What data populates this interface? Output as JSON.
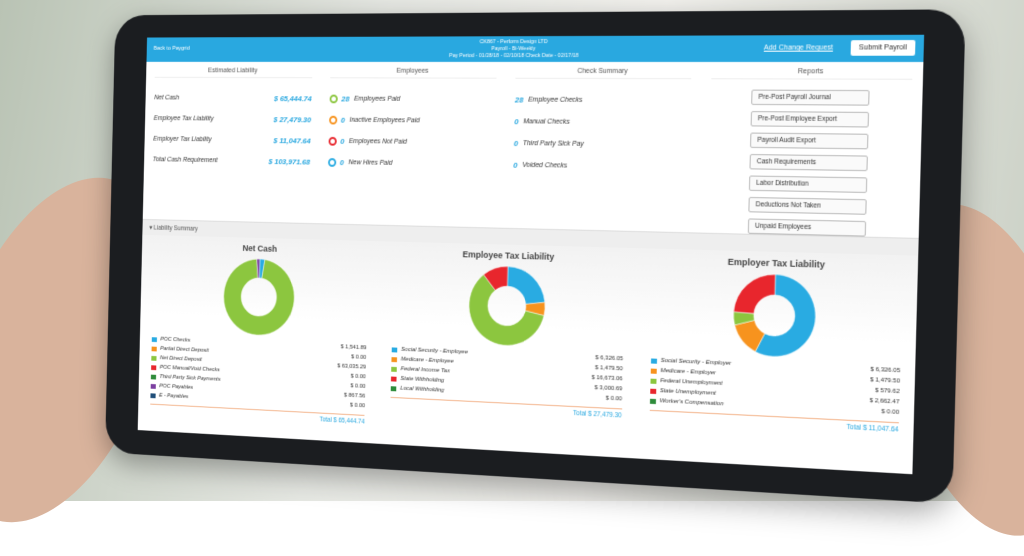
{
  "header": {
    "back": "Back to Paygrid",
    "company": "CK867 - Perform Design LTD",
    "payroll": "Payroll - Bi-Weekly",
    "period": "Pay Period - 01/28/18 - 02/10/18   Check Date - 02/17/18",
    "change_request": "Add Change Request",
    "submit": "Submit Payroll"
  },
  "estimated_liability": {
    "title": "Estimated Liability",
    "rows": [
      {
        "label": "Net Cash",
        "value": "$ 65,444.74"
      },
      {
        "label": "Employee Tax Liability",
        "value": "$ 27,479.30"
      },
      {
        "label": "Employer Tax Liability",
        "value": "$ 11,047.64"
      },
      {
        "label": "Total Cash Requirement",
        "value": "$ 103,971.68"
      }
    ]
  },
  "employees": {
    "title": "Employees",
    "rows": [
      {
        "count": "28",
        "label": "Employees Paid"
      },
      {
        "count": "0",
        "label": "Inactive Employees Paid"
      },
      {
        "count": "0",
        "label": "Employees Not Paid"
      },
      {
        "count": "0",
        "label": "New Hires Paid"
      }
    ]
  },
  "check_summary": {
    "title": "Check Summary",
    "rows": [
      {
        "count": "28",
        "label": "Employee Checks"
      },
      {
        "count": "0",
        "label": "Manual Checks"
      },
      {
        "count": "0",
        "label": "Third Party Sick Pay"
      },
      {
        "count": "0",
        "label": "Voided Checks"
      }
    ]
  },
  "reports": {
    "title": "Reports",
    "items": [
      "Pre-Post Payroll Journal",
      "Pre-Post Employee Export",
      "Payroll Audit Export",
      "Cash Requirements",
      "Labor Distribution",
      "Deductions Not Taken",
      "Unpaid Employees"
    ]
  },
  "liability_summary": "Liability Summary",
  "chart_data": [
    {
      "type": "pie",
      "title": "Net Cash",
      "categories": [
        "POC Checks",
        "Partial Direct Deposit",
        "Net Direct Deposit",
        "POC Manual/Void Checks",
        "Third Party Sick Payments",
        "POC Payables",
        "E - Payables"
      ],
      "values": [
        1541.89,
        0,
        63035.29,
        0,
        0,
        867.56,
        0
      ],
      "value_labels": [
        "$ 1,541.89",
        "$ 0.00",
        "$ 63,035.29",
        "$ 0.00",
        "$ 0.00",
        "$ 867.56",
        "$ 0.00"
      ],
      "colors": [
        "#29abe2",
        "#f7931e",
        "#8cc63f",
        "#e8262d",
        "#2e8b3a",
        "#7b3fa0",
        "#1f4e79"
      ],
      "total_label": "Total",
      "total": "$ 65,444.74"
    },
    {
      "type": "pie",
      "title": "Employee Tax Liability",
      "categories": [
        "Social Security - Employee",
        "Medicare - Employee",
        "Federal Income Tax",
        "State Withholding",
        "Local Withholding"
      ],
      "values": [
        6326.05,
        1479.5,
        16673.06,
        3000.69,
        0
      ],
      "value_labels": [
        "$ 6,326.05",
        "$ 1,479.50",
        "$ 16,673.06",
        "$ 3,000.69",
        "$ 0.00"
      ],
      "colors": [
        "#29abe2",
        "#f7931e",
        "#8cc63f",
        "#e8262d",
        "#2e8b3a"
      ],
      "total_label": "Total",
      "total": "$ 27,479.30"
    },
    {
      "type": "pie",
      "title": "Employer Tax Liability",
      "categories": [
        "Social Security - Employer",
        "Medicare - Employer",
        "Federal Unemployment",
        "State Unemployment",
        "Worker's Compensation"
      ],
      "values": [
        6326.05,
        1479.5,
        579.62,
        2662.47,
        0
      ],
      "value_labels": [
        "$ 6,326.05",
        "$ 1,479.50",
        "$ 579.62",
        "$ 2,662.47",
        "$ 0.00"
      ],
      "colors": [
        "#29abe2",
        "#f7931e",
        "#8cc63f",
        "#e8262d",
        "#2e8b3a"
      ],
      "total_label": "Total",
      "total": "$ 11,047.64"
    }
  ]
}
